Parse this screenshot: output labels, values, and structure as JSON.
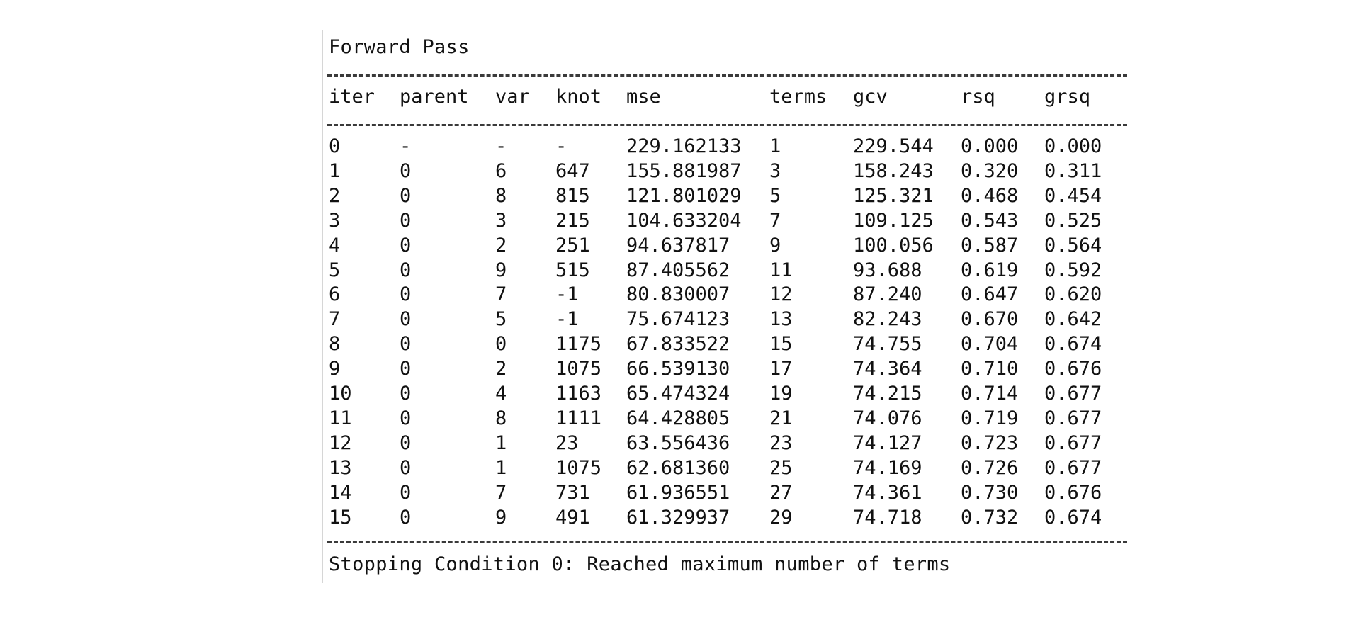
{
  "title": "Forward Pass",
  "headers": [
    "iter",
    "parent",
    "var",
    "knot",
    "mse",
    "terms",
    "gcv",
    "rsq",
    "grsq"
  ],
  "rows": [
    [
      "0",
      "-",
      "-",
      "-",
      "229.162133",
      "1",
      "229.544",
      "0.000",
      "0.000"
    ],
    [
      "1",
      "0",
      "6",
      "647",
      "155.881987",
      "3",
      "158.243",
      "0.320",
      "0.311"
    ],
    [
      "2",
      "0",
      "8",
      "815",
      "121.801029",
      "5",
      "125.321",
      "0.468",
      "0.454"
    ],
    [
      "3",
      "0",
      "3",
      "215",
      "104.633204",
      "7",
      "109.125",
      "0.543",
      "0.525"
    ],
    [
      "4",
      "0",
      "2",
      "251",
      "94.637817",
      "9",
      "100.056",
      "0.587",
      "0.564"
    ],
    [
      "5",
      "0",
      "9",
      "515",
      "87.405562",
      "11",
      "93.688",
      "0.619",
      "0.592"
    ],
    [
      "6",
      "0",
      "7",
      "-1",
      "80.830007",
      "12",
      "87.240",
      "0.647",
      "0.620"
    ],
    [
      "7",
      "0",
      "5",
      "-1",
      "75.674123",
      "13",
      "82.243",
      "0.670",
      "0.642"
    ],
    [
      "8",
      "0",
      "0",
      "1175",
      "67.833522",
      "15",
      "74.755",
      "0.704",
      "0.674"
    ],
    [
      "9",
      "0",
      "2",
      "1075",
      "66.539130",
      "17",
      "74.364",
      "0.710",
      "0.676"
    ],
    [
      "10",
      "0",
      "4",
      "1163",
      "65.474324",
      "19",
      "74.215",
      "0.714",
      "0.677"
    ],
    [
      "11",
      "0",
      "8",
      "1111",
      "64.428805",
      "21",
      "74.076",
      "0.719",
      "0.677"
    ],
    [
      "12",
      "0",
      "1",
      "23",
      "63.556436",
      "23",
      "74.127",
      "0.723",
      "0.677"
    ],
    [
      "13",
      "0",
      "1",
      "1075",
      "62.681360",
      "25",
      "74.169",
      "0.726",
      "0.677"
    ],
    [
      "14",
      "0",
      "7",
      "731",
      "61.936551",
      "27",
      "74.361",
      "0.730",
      "0.676"
    ],
    [
      "15",
      "0",
      "9",
      "491",
      "61.329937",
      "29",
      "74.718",
      "0.732",
      "0.674"
    ]
  ],
  "stopping_condition": "Stopping Condition 0: Reached maximum number of terms"
}
